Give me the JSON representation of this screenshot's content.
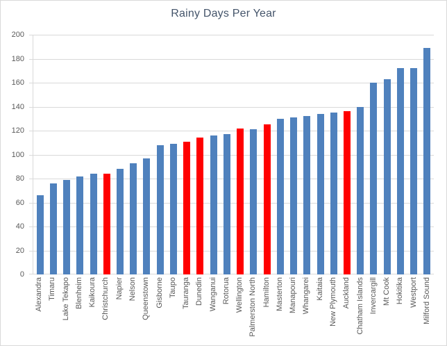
{
  "title": "Rainy Days Per Year",
  "colors": {
    "bar_default": "#4f81bd",
    "bar_highlight": "#ff0000",
    "gridline": "#d9d9d9",
    "axis_text": "#595959",
    "title_text": "#44546a"
  },
  "chart_data": {
    "type": "bar",
    "title": "Rainy Days Per Year",
    "xlabel": "",
    "ylabel": "",
    "ylim": [
      0,
      200
    ],
    "ytick_step": 20,
    "ytick_labels": [
      "0",
      "20",
      "40",
      "60",
      "80",
      "100",
      "120",
      "140",
      "160",
      "180",
      "200"
    ],
    "grid": true,
    "legend_position": "none",
    "categories": [
      "Alexandra",
      "Timaru",
      "Lake Tekapo",
      "Blenheim",
      "Kaikoura",
      "Christchurch",
      "Napier",
      "Nelson",
      "Queenstown",
      "Gisborne",
      "Taupo",
      "Tauranga",
      "Dunedin",
      "Wanganui",
      "Rotorua",
      "Wellington",
      "Palmerston North",
      "Hamilton",
      "Masterton",
      "Manapouri",
      "Whangarei",
      "Kaitaia",
      "New Plymouth",
      "Auckland",
      "Chatham Islands",
      "Invercargill",
      "Mt Cook",
      "Hokitika",
      "Westport",
      "Milford Sound"
    ],
    "values": [
      66,
      76,
      79,
      82,
      84,
      84,
      88,
      93,
      97,
      108,
      109,
      111,
      114,
      116,
      117,
      122,
      121,
      125,
      130,
      131,
      132,
      134,
      135,
      136,
      140,
      160,
      163,
      172,
      172,
      189
    ],
    "highlighted_categories": [
      "Christchurch",
      "Tauranga",
      "Dunedin",
      "Wellington",
      "Hamilton",
      "Auckland"
    ]
  }
}
